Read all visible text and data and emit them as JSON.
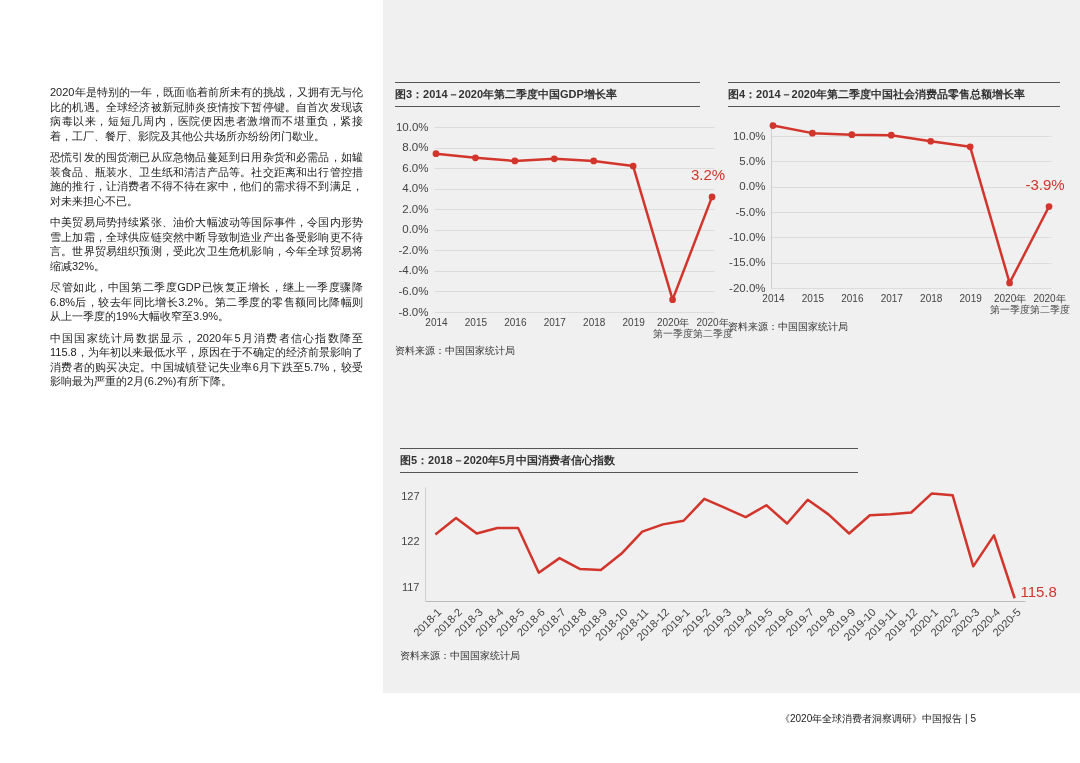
{
  "chart_data": [
    {
      "type": "other",
      "annotations": [
        "2020年是特别的一年，既面临着前所未有的挑战，又拥有无与伦比的机遇。全球经济被新冠肺炎疫情按下暂停键。自首次发现该病毒以来，短短几周内，医院便因患者激增而不堪重负，紧接着，工厂、餐厅、影院及其他公共场所亦纷纷闭门歇业。",
        "恐慌引发的囤货潮已从应急物品蔓延到日用杂货和必需品，如罐装食品、瓶装水、卫生纸和清洁产品等。社交距离和出行管控措施的推行，让消费者不得不待在家中，他们的需求得不到满足，对未来担心不已。",
        "中美贸易局势持续紧张、油价大幅波动等国际事件，令国内形势雪上加霜，全球供应链突然中断导致制造业产出备受影响更不待言。世界贸易组织预测，受此次卫生危机影响，今年全球贸易将缩减32%。",
        "尽管如此，中国第二季度GDP已恢复正增长，继上一季度骤降6.8%后，较去年同比增长3.2%。第二季度的零售额同比降幅则从上一季度的19%大幅收窄至3.9%。",
        "中国国家统计局数据显示，2020年5月消费者信心指数降至115.8，为年初以来最低水平，原因在于不确定的经济前景影响了消费者的购买决定。中国城镇登记失业率6月下跌至5.7%，较受影响最为严重的2月(6.2%)有所下降。",
        "《2020年全球消费者洞察调研》中国报告 | 5"
      ]
    },
    {
      "type": "line",
      "title": "图3：2014－2020年第二季度中国GDP增长率",
      "categories": [
        "2014",
        "2015",
        "2016",
        "2017",
        "2018",
        "2019",
        "2020年第一季度",
        "2020年第二季度"
      ],
      "values": [
        7.4,
        7.0,
        6.7,
        6.9,
        6.7,
        6.2,
        -6.8,
        3.2
      ],
      "value_labels": [
        null,
        null,
        null,
        null,
        null,
        null,
        null,
        "3.2%"
      ],
      "color": "#d2352c",
      "marker": "circle",
      "ylim": [
        -8,
        10
      ],
      "yticks": [
        {
          "value": -8,
          "label": "-8.0%"
        },
        {
          "value": -6,
          "label": "-6.0%"
        },
        {
          "value": -4,
          "label": "-4.0%"
        },
        {
          "value": -2,
          "label": "-2.0%"
        },
        {
          "value": 0,
          "label": "0.0%"
        },
        {
          "value": 2,
          "label": "2.0%"
        },
        {
          "value": 4,
          "label": "4.0%"
        },
        {
          "value": 6,
          "label": "6.0%"
        },
        {
          "value": 8,
          "label": "8.0%"
        },
        {
          "value": 10,
          "label": "10.0%"
        }
      ],
      "grid": "y",
      "annotations": [
        "资料来源：中国国家统计局"
      ]
    },
    {
      "type": "line",
      "title": "图4：2014－2020年第二季度中国社会消费品零售总额增长率",
      "categories": [
        "2014",
        "2015",
        "2016",
        "2017",
        "2018",
        "2019",
        "2020年第一季度",
        "2020年第二季度"
      ],
      "values": [
        12.1,
        10.6,
        10.3,
        10.2,
        9.0,
        7.9,
        -19.0,
        -3.9
      ],
      "value_labels": [
        null,
        null,
        null,
        null,
        null,
        null,
        null,
        "-3.9%"
      ],
      "color": "#d2352c",
      "marker": "circle",
      "ylim": [
        -20,
        13
      ],
      "yticks": [
        {
          "value": -20,
          "label": "-20.0%"
        },
        {
          "value": -15,
          "label": "-15.0%"
        },
        {
          "value": -10,
          "label": "-10.0%"
        },
        {
          "value": -5,
          "label": "-5.0%"
        },
        {
          "value": 0,
          "label": "0.0%"
        },
        {
          "value": 5,
          "label": "5.0%"
        },
        {
          "value": 10,
          "label": "10.0%"
        }
      ],
      "grid": "y",
      "annotations": [
        "资料来源：中国国家统计局"
      ]
    },
    {
      "type": "line",
      "title": "图5：2018－2020年5月中国消费者信心指数",
      "categories": [
        "2018-1",
        "2018-2",
        "2018-3",
        "2018-4",
        "2018-5",
        "2018-6",
        "2018-7",
        "2018-8",
        "2018-9",
        "2018-10",
        "2018-11",
        "2018-12",
        "2019-1",
        "2019-2",
        "2019-3",
        "2019-4",
        "2019-5",
        "2019-6",
        "2019-7",
        "2019-8",
        "2019-9",
        "2019-10",
        "2019-11",
        "2019-12",
        "2020-1",
        "2020-2",
        "2020-3",
        "2020-4",
        "2020-5"
      ],
      "values": [
        122.8,
        124.6,
        122.9,
        123.5,
        123.5,
        118.6,
        120.2,
        119.0,
        118.9,
        120.7,
        123.1,
        123.9,
        124.3,
        126.7,
        125.7,
        124.7,
        126.0,
        124.0,
        126.6,
        125.0,
        122.9,
        124.9,
        125.0,
        125.2,
        127.3,
        127.1,
        119.3,
        122.7,
        115.8
      ],
      "value_labels": [
        null,
        null,
        null,
        null,
        null,
        null,
        null,
        null,
        null,
        null,
        null,
        null,
        null,
        null,
        null,
        null,
        null,
        null,
        null,
        null,
        null,
        null,
        null,
        null,
        null,
        null,
        null,
        null,
        "115.8"
      ],
      "color": "#d2352c",
      "ylim": [
        115.5,
        128
      ],
      "yticks": [
        117,
        122,
        127
      ],
      "grid": false,
      "annotations": [
        "资料来源：中国国家统计局"
      ]
    }
  ]
}
